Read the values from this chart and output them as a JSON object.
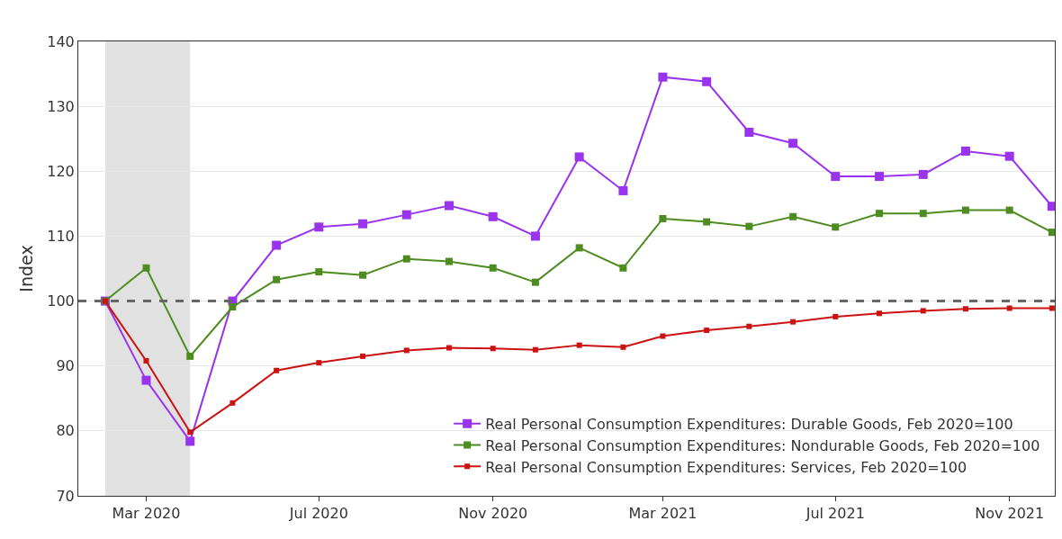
{
  "chart_data": {
    "type": "line",
    "ylabel": "Index",
    "x": [
      "2020-02-01",
      "2020-03-01",
      "2020-04-01",
      "2020-05-01",
      "2020-06-01",
      "2020-07-01",
      "2020-08-01",
      "2020-09-01",
      "2020-10-01",
      "2020-11-01",
      "2020-12-01",
      "2021-01-01",
      "2021-02-01",
      "2021-03-01",
      "2021-04-01",
      "2021-05-01",
      "2021-06-01",
      "2021-07-01",
      "2021-08-01",
      "2021-09-01",
      "2021-10-01",
      "2021-11-01",
      "2021-12-01"
    ],
    "series": [
      {
        "name": "Real Personal Consumption Expenditures: Durable Goods, Feb 2020=100",
        "color": "#9933ee",
        "values": [
          100,
          87.8,
          78.4,
          100,
          108.6,
          111.4,
          111.9,
          113.3,
          114.7,
          113,
          110,
          122.2,
          117,
          134.5,
          133.8,
          126,
          124.3,
          119.2,
          119.2,
          119.5,
          123.1,
          122.3,
          114.6
        ]
      },
      {
        "name": "Real Personal Consumption Expenditures: Nondurable Goods, Feb 2020=100",
        "color": "#4d8c1f",
        "values": [
          100,
          105.1,
          91.5,
          99.1,
          103.3,
          104.5,
          104,
          106.5,
          106.1,
          105.1,
          102.9,
          108.2,
          105.1,
          112.7,
          112.2,
          111.5,
          113,
          111.4,
          113.5,
          113.5,
          114,
          114,
          110.6
        ]
      },
      {
        "name": "Real Personal Consumption Expenditures: Services, Feb 2020=100",
        "color": "#cc1111",
        "values": [
          100,
          90.8,
          79.8,
          84.3,
          89.3,
          90.5,
          91.5,
          92.4,
          92.8,
          92.7,
          92.5,
          93.2,
          92.9,
          94.6,
          95.5,
          96.1,
          96.8,
          97.6,
          98.1,
          98.5,
          98.8,
          98.9,
          98.9
        ]
      }
    ],
    "xlim": [
      "2020-01-13",
      "2021-12-03"
    ],
    "xticks": [
      {
        "value": "2020-03-01",
        "label": "Mar 2020"
      },
      {
        "value": "2020-07-01",
        "label": "Jul 2020"
      },
      {
        "value": "2020-11-01",
        "label": "Nov 2020"
      },
      {
        "value": "2021-03-01",
        "label": "Mar 2021"
      },
      {
        "value": "2021-07-01",
        "label": "Jul 2021"
      },
      {
        "value": "2021-11-01",
        "label": "Nov 2021"
      }
    ],
    "ylim": [
      70,
      140
    ],
    "yticks": [
      70,
      80,
      90,
      100,
      110,
      120,
      130,
      140
    ],
    "ref_lines": [
      {
        "axis": "y",
        "value": 100,
        "color": "#666666",
        "line_style": "dashed"
      }
    ],
    "bands": [
      {
        "axis": "x",
        "from": "2020-02-01",
        "to": "2020-04-01",
        "color": "#e1e1e1"
      }
    ],
    "grid": "y",
    "legend": "bottom right",
    "marker": "square",
    "line_style": "solid"
  }
}
